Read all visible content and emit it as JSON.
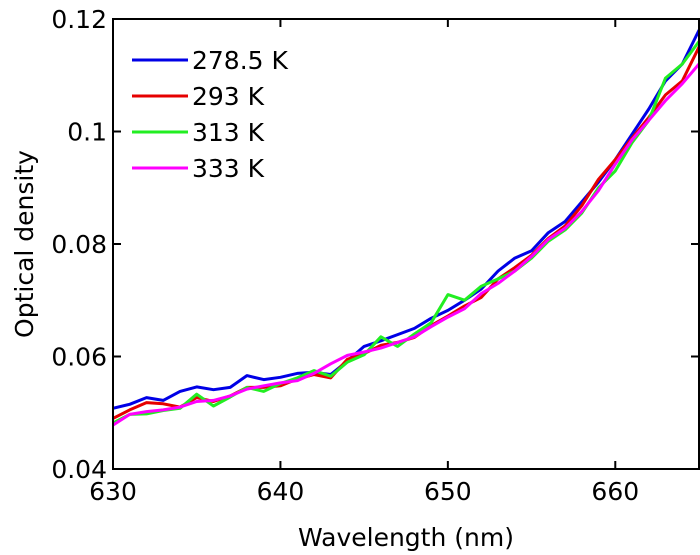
{
  "chart_data": {
    "type": "line",
    "title": "",
    "xlabel": "Wavelength (nm)",
    "ylabel": "Optical density",
    "xlim": [
      630,
      665
    ],
    "ylim": [
      0.04,
      0.12
    ],
    "xticks": [
      630,
      640,
      650,
      660
    ],
    "yticks": [
      0.04,
      0.06,
      0.08,
      0.1,
      0.12
    ],
    "xtick_labels": [
      "630",
      "640",
      "650",
      "660"
    ],
    "ytick_labels": [
      "0.04",
      "0.06",
      "0.08",
      "0.1",
      "0.12"
    ],
    "grid": false,
    "legend_position": "top-left",
    "x": [
      630,
      631,
      632,
      633,
      634,
      635,
      636,
      637,
      638,
      639,
      640,
      641,
      642,
      643,
      644,
      645,
      646,
      647,
      648,
      649,
      650,
      651,
      652,
      653,
      654,
      655,
      656,
      657,
      658,
      659,
      660,
      661,
      662,
      663,
      664,
      665
    ],
    "series": [
      {
        "name": "278.5 K",
        "color": "#0000e6",
        "values": [
          0.0508,
          0.0515,
          0.0527,
          0.0522,
          0.0538,
          0.0546,
          0.0541,
          0.0545,
          0.0566,
          0.0559,
          0.0563,
          0.057,
          0.0572,
          0.0568,
          0.0592,
          0.0618,
          0.0628,
          0.0639,
          0.065,
          0.0668,
          0.0682,
          0.07,
          0.072,
          0.0752,
          0.0775,
          0.0788,
          0.082,
          0.084,
          0.0875,
          0.091,
          0.095,
          0.0995,
          0.104,
          0.109,
          0.112,
          0.118
        ]
      },
      {
        "name": "293 K",
        "color": "#e60000",
        "values": [
          0.049,
          0.0505,
          0.0518,
          0.0516,
          0.051,
          0.0527,
          0.052,
          0.053,
          0.0545,
          0.0545,
          0.0548,
          0.056,
          0.0568,
          0.0562,
          0.0595,
          0.0605,
          0.062,
          0.0625,
          0.0634,
          0.0655,
          0.0672,
          0.069,
          0.0705,
          0.0738,
          0.0758,
          0.078,
          0.081,
          0.0832,
          0.0868,
          0.0915,
          0.095,
          0.0988,
          0.1025,
          0.1065,
          0.109,
          0.115
        ]
      },
      {
        "name": "313 K",
        "color": "#22ee22",
        "values": [
          0.0482,
          0.0497,
          0.0498,
          0.0504,
          0.0508,
          0.0533,
          0.0512,
          0.0528,
          0.0545,
          0.0538,
          0.0552,
          0.0562,
          0.0575,
          0.0565,
          0.059,
          0.0603,
          0.0635,
          0.0618,
          0.064,
          0.066,
          0.071,
          0.07,
          0.0725,
          0.0738,
          0.0752,
          0.0775,
          0.0805,
          0.0825,
          0.0855,
          0.09,
          0.093,
          0.098,
          0.102,
          0.1095,
          0.112,
          0.116
        ]
      },
      {
        "name": "333 K",
        "color": "#ff00ff",
        "values": [
          0.0478,
          0.0497,
          0.0502,
          0.0505,
          0.051,
          0.052,
          0.0522,
          0.053,
          0.0542,
          0.0548,
          0.0553,
          0.0557,
          0.057,
          0.0587,
          0.0602,
          0.0608,
          0.0615,
          0.0625,
          0.0635,
          0.0653,
          0.067,
          0.0685,
          0.0712,
          0.073,
          0.0752,
          0.0778,
          0.0808,
          0.0828,
          0.0858,
          0.0895,
          0.0942,
          0.0985,
          0.102,
          0.1055,
          0.1085,
          0.112
        ]
      }
    ]
  }
}
